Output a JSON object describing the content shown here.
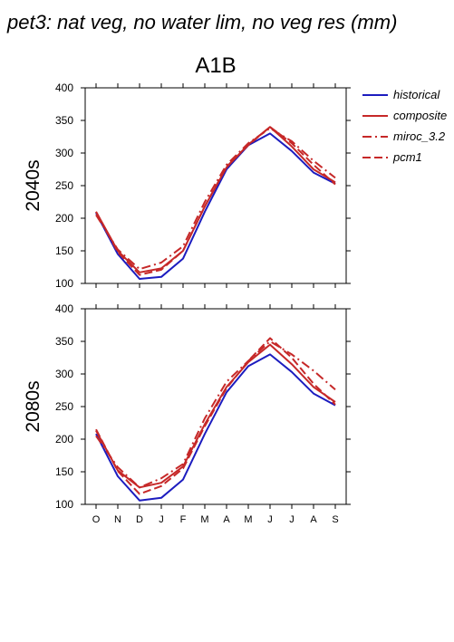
{
  "page": {
    "title": "pet3: nat veg, no water lim, no veg res (mm)",
    "scenario": "A1B"
  },
  "legend": [
    {
      "label": "historical",
      "color": "#1c1cbf",
      "dash": "solid"
    },
    {
      "label": "composite",
      "color": "#c62828",
      "dash": "solid"
    },
    {
      "label": "miroc_3.2",
      "color": "#c62828",
      "dash": "dashdot"
    },
    {
      "label": "pcm1",
      "color": "#c62828",
      "dash": "dash"
    }
  ],
  "chart_data": [
    {
      "type": "line",
      "ylabel": "2040s",
      "ylim": [
        100,
        400
      ],
      "yticks": [
        100,
        150,
        200,
        250,
        300,
        350,
        400
      ],
      "categories": [
        "O",
        "N",
        "D",
        "J",
        "F",
        "M",
        "A",
        "M",
        "J",
        "J",
        "A",
        "S"
      ],
      "series": [
        {
          "name": "historical",
          "values": [
            208,
            145,
            107,
            110,
            138,
            210,
            275,
            312,
            330,
            303,
            270,
            253
          ]
        },
        {
          "name": "composite",
          "values": [
            210,
            150,
            117,
            123,
            150,
            218,
            278,
            313,
            340,
            310,
            275,
            255
          ]
        },
        {
          "name": "miroc_3.2",
          "values": [
            205,
            152,
            122,
            132,
            157,
            225,
            282,
            315,
            338,
            318,
            288,
            262
          ]
        },
        {
          "name": "pcm1",
          "values": [
            210,
            148,
            113,
            121,
            150,
            218,
            279,
            312,
            340,
            315,
            282,
            252
          ]
        }
      ]
    },
    {
      "type": "line",
      "ylabel": "2080s",
      "ylim": [
        100,
        400
      ],
      "yticks": [
        100,
        150,
        200,
        250,
        300,
        350,
        400
      ],
      "xlabels": [
        "O",
        "N",
        "D",
        "J",
        "F",
        "M",
        "A",
        "M",
        "J",
        "J",
        "A",
        "S"
      ],
      "categories": [
        "O",
        "N",
        "D",
        "J",
        "F",
        "M",
        "A",
        "M",
        "J",
        "J",
        "A",
        "S"
      ],
      "series": [
        {
          "name": "historical",
          "values": [
            208,
            143,
            106,
            110,
            138,
            208,
            272,
            312,
            330,
            303,
            270,
            252
          ]
        },
        {
          "name": "composite",
          "values": [
            213,
            152,
            126,
            133,
            158,
            223,
            280,
            318,
            345,
            315,
            280,
            257
          ]
        },
        {
          "name": "miroc_3.2",
          "values": [
            205,
            157,
            126,
            140,
            162,
            232,
            288,
            320,
            350,
            330,
            305,
            276
          ]
        },
        {
          "name": "pcm1",
          "values": [
            215,
            151,
            116,
            128,
            155,
            220,
            278,
            320,
            355,
            325,
            285,
            253
          ]
        }
      ]
    }
  ]
}
